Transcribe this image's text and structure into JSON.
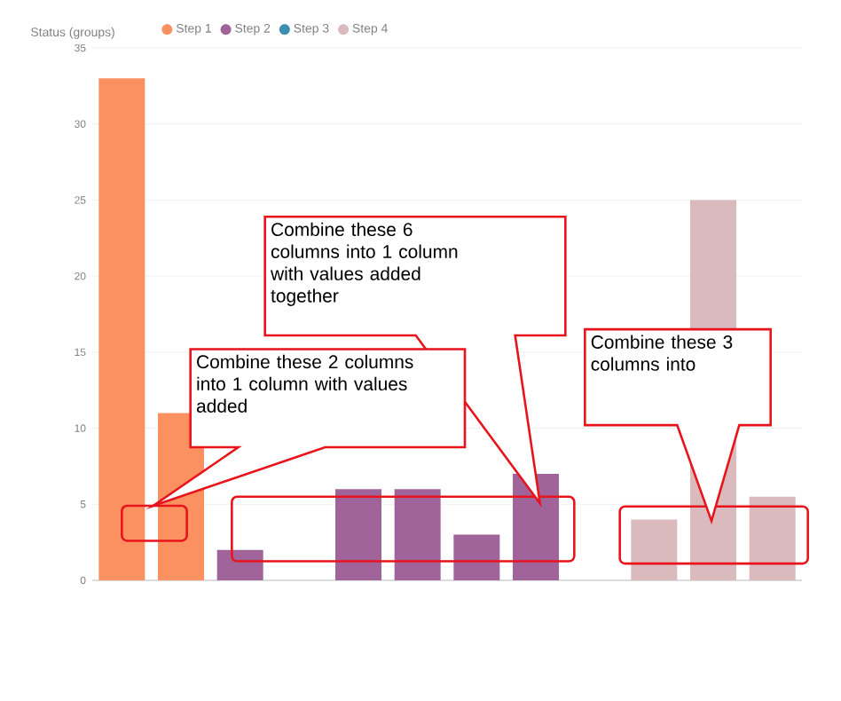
{
  "chart_data": {
    "type": "bar",
    "legend_title": "Status (groups)",
    "categories": [
      null,
      null,
      null,
      null,
      null,
      null,
      null,
      null,
      null,
      null,
      null,
      null
    ],
    "series": [
      {
        "name": "Step 1",
        "color": "#fb9160",
        "values": [
          33,
          11,
          null,
          null,
          null,
          null,
          null,
          null,
          null,
          null,
          null,
          null
        ]
      },
      {
        "name": "Step 2",
        "color": "#a0649a",
        "values": [
          null,
          null,
          2,
          null,
          6,
          6,
          3,
          7,
          null,
          null,
          null,
          null
        ]
      },
      {
        "name": "Step 3",
        "color": "#3b8fb0",
        "values": [
          null,
          null,
          null,
          null,
          null,
          null,
          null,
          null,
          null,
          null,
          null,
          null
        ]
      },
      {
        "name": "Step 4",
        "color": "#dbbabd",
        "values": [
          null,
          null,
          null,
          null,
          null,
          null,
          null,
          null,
          null,
          4,
          25,
          5.5
        ]
      }
    ],
    "ylim": [
      0,
      35
    ],
    "yticks": [
      0,
      5,
      10,
      15,
      20,
      25,
      30,
      35
    ],
    "grid": "y",
    "legend": "top left",
    "tick_labels": "y",
    "annotations": [
      "Combine these 6 columns into 1 column with values added together",
      "Combine these 2 columns into 1 column with values added",
      "Combine these 3 columns into"
    ]
  }
}
